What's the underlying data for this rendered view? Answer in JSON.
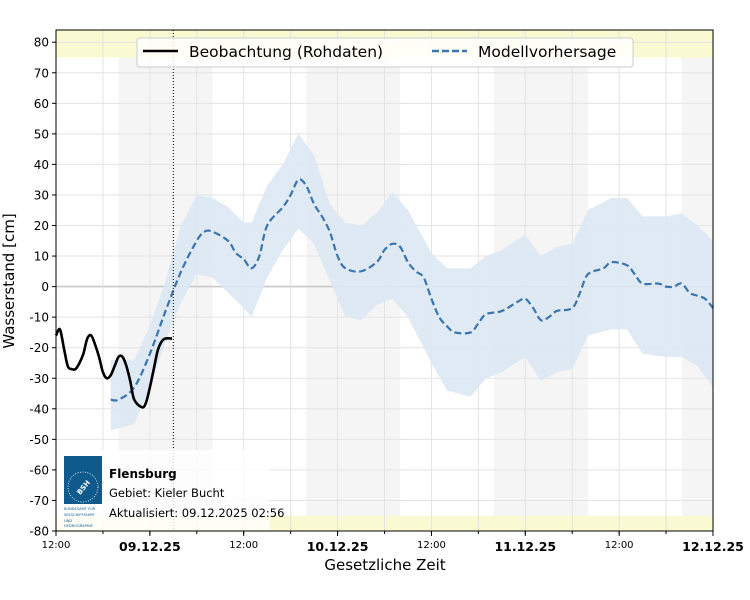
{
  "chart_data": {
    "type": "line",
    "xlabel": "Gesetzliche Zeit",
    "ylabel": "Wasserstand [cm]",
    "xlim": [
      "08.12 12:00",
      "12.12 00:00"
    ],
    "ylim": [
      -80,
      84
    ],
    "y_ticks": [
      -80,
      -70,
      -60,
      -50,
      -40,
      -30,
      -20,
      -10,
      0,
      10,
      20,
      30,
      40,
      50,
      60,
      70,
      80
    ],
    "x_ticks": [
      {
        "t": "08.12 12:00",
        "label": "12:00",
        "bold": false
      },
      {
        "t": "09.12 00:00",
        "label": "09.12.25",
        "bold": true
      },
      {
        "t": "09.12 12:00",
        "label": "12:00",
        "bold": false
      },
      {
        "t": "10.12 00:00",
        "label": "10.12.25",
        "bold": true
      },
      {
        "t": "10.12 12:00",
        "label": "12:00",
        "bold": false
      },
      {
        "t": "11.12 00:00",
        "label": "11.12.25",
        "bold": true
      },
      {
        "t": "11.12 12:00",
        "label": "12:00",
        "bold": false
      },
      {
        "t": "12.12 00:00",
        "label": "12.12.25",
        "bold": true
      }
    ],
    "grid": true,
    "legend_placement": "top-center",
    "night_bands": [
      [
        "08.12 20:00",
        "09.12 08:00"
      ],
      [
        "09.12 20:00",
        "10.12 08:00"
      ],
      [
        "10.12 20:00",
        "11.12 08:00"
      ],
      [
        "11.12 20:00",
        "12.12 00:00"
      ]
    ],
    "warning_bands": [
      [
        75,
        84
      ],
      [
        -80,
        -75
      ]
    ],
    "now_marker": "09.12 03:00",
    "colors": {
      "observation": "#000000",
      "forecast": "#3a75b0",
      "band": "#dce8f3",
      "night": "#f5f5f5",
      "warning": "#fafad2",
      "logo": "#0f5a8c"
    },
    "series": [
      {
        "name": "Beobachtung (Rohdaten)",
        "style": "solid",
        "points": [
          [
            "08.12 12:00",
            -16
          ],
          [
            "08.12 12:30",
            -14
          ],
          [
            "08.12 13:00",
            -20
          ],
          [
            "08.12 13:30",
            -26
          ],
          [
            "08.12 14:00",
            -27
          ],
          [
            "08.12 14:30",
            -27
          ],
          [
            "08.12 15:00",
            -25
          ],
          [
            "08.12 15:30",
            -22
          ],
          [
            "08.12 16:00",
            -17
          ],
          [
            "08.12 16:30",
            -16
          ],
          [
            "08.12 17:00",
            -19
          ],
          [
            "08.12 17:30",
            -23
          ],
          [
            "08.12 18:00",
            -28
          ],
          [
            "08.12 18:30",
            -30
          ],
          [
            "08.12 19:00",
            -29
          ],
          [
            "08.12 19:30",
            -26
          ],
          [
            "08.12 20:00",
            -23
          ],
          [
            "08.12 20:30",
            -23
          ],
          [
            "08.12 21:00",
            -26
          ],
          [
            "08.12 21:30",
            -31
          ],
          [
            "08.12 22:00",
            -37
          ],
          [
            "08.12 23:00",
            -39.5
          ],
          [
            "08.12 23:30",
            -38
          ],
          [
            "09.12 00:00",
            -33
          ],
          [
            "09.12 00:30",
            -27
          ],
          [
            "09.12 01:00",
            -21
          ],
          [
            "09.12 01:30",
            -18
          ],
          [
            "09.12 02:00",
            -17
          ],
          [
            "09.12 02:50",
            -17
          ]
        ]
      },
      {
        "name": "Modellvorhersage",
        "style": "dashed",
        "points": [
          [
            "08.12 19:00",
            -37
          ],
          [
            "08.12 20:00",
            -37
          ],
          [
            "08.12 22:00",
            -33
          ],
          [
            "09.12 00:00",
            -22
          ],
          [
            "09.12 02:00",
            -8
          ],
          [
            "09.12 04:00",
            5
          ],
          [
            "09.12 06:00",
            15
          ],
          [
            "09.12 07:00",
            18
          ],
          [
            "09.12 08:00",
            18
          ],
          [
            "09.12 10:00",
            15
          ],
          [
            "09.12 11:00",
            11
          ],
          [
            "09.12 12:00",
            9
          ],
          [
            "09.12 13:00",
            6
          ],
          [
            "09.12 14:00",
            10
          ],
          [
            "09.12 15:00",
            20
          ],
          [
            "09.12 17:00",
            26
          ],
          [
            "09.12 18:00",
            30
          ],
          [
            "09.12 19:00",
            35
          ],
          [
            "09.12 20:00",
            33
          ],
          [
            "09.12 21:00",
            27
          ],
          [
            "09.12 22:00",
            23
          ],
          [
            "09.12 23:00",
            18
          ],
          [
            "10.12 00:00",
            10
          ],
          [
            "10.12 01:00",
            6
          ],
          [
            "10.12 03:00",
            5
          ],
          [
            "10.12 05:00",
            8
          ],
          [
            "10.12 06:00",
            12
          ],
          [
            "10.12 07:00",
            14
          ],
          [
            "10.12 08:00",
            13
          ],
          [
            "10.12 09:00",
            8
          ],
          [
            "10.12 10:00",
            5
          ],
          [
            "10.12 11:00",
            3
          ],
          [
            "10.12 12:00",
            -4
          ],
          [
            "10.12 13:00",
            -10
          ],
          [
            "10.12 14:00",
            -13
          ],
          [
            "10.12 15:00",
            -15
          ],
          [
            "10.12 17:00",
            -15
          ],
          [
            "10.12 18:00",
            -12
          ],
          [
            "10.12 19:00",
            -9
          ],
          [
            "10.12 21:00",
            -8
          ],
          [
            "10.12 23:00",
            -5
          ],
          [
            "11.12 00:00",
            -4
          ],
          [
            "11.12 01:00",
            -7
          ],
          [
            "11.12 02:00",
            -11
          ],
          [
            "11.12 03:00",
            -10
          ],
          [
            "11.12 04:00",
            -8
          ],
          [
            "11.12 06:00",
            -7
          ],
          [
            "11.12 07:00",
            -2
          ],
          [
            "11.12 08:00",
            4
          ],
          [
            "11.12 10:00",
            6
          ],
          [
            "11.12 11:00",
            8
          ],
          [
            "11.12 13:00",
            7
          ],
          [
            "11.12 14:00",
            4
          ],
          [
            "11.12 15:00",
            1
          ],
          [
            "11.12 17:00",
            1
          ],
          [
            "11.12 18:00",
            0
          ],
          [
            "11.12 19:00",
            0
          ],
          [
            "11.12 20:00",
            1
          ],
          [
            "11.12 21:00",
            -2
          ],
          [
            "11.12 22:00",
            -3
          ],
          [
            "11.12 23:00",
            -4
          ],
          [
            "12.12 00:00",
            -7
          ]
        ]
      }
    ],
    "uncertainty_band": [
      [
        "08.12 19:00",
        -24,
        -47
      ],
      [
        "08.12 22:00",
        -24,
        -45
      ],
      [
        "09.12 00:00",
        -13,
        -33
      ],
      [
        "09.12 02:00",
        2,
        -18
      ],
      [
        "09.12 04:00",
        20,
        -5
      ],
      [
        "09.12 06:00",
        30,
        4
      ],
      [
        "09.12 08:00",
        29,
        3
      ],
      [
        "09.12 10:00",
        26,
        -2
      ],
      [
        "09.12 12:00",
        21,
        -7
      ],
      [
        "09.12 13:00",
        21,
        -10
      ],
      [
        "09.12 15:00",
        33,
        3
      ],
      [
        "09.12 17:00",
        40,
        12
      ],
      [
        "09.12 19:00",
        50,
        19
      ],
      [
        "09.12 21:00",
        43,
        14
      ],
      [
        "09.12 23:00",
        27,
        2
      ],
      [
        "10.12 01:00",
        21,
        -10
      ],
      [
        "10.12 03:00",
        20,
        -11
      ],
      [
        "10.12 05:00",
        24,
        -6
      ],
      [
        "10.12 07:00",
        31,
        -4
      ],
      [
        "10.12 09:00",
        25,
        -10
      ],
      [
        "10.12 12:00",
        11,
        -25
      ],
      [
        "10.12 14:00",
        6,
        -34
      ],
      [
        "10.12 17:00",
        6,
        -36
      ],
      [
        "10.12 19:00",
        10,
        -30
      ],
      [
        "10.12 21:00",
        12,
        -28
      ],
      [
        "11.12 00:00",
        17,
        -23
      ],
      [
        "11.12 02:00",
        10,
        -31
      ],
      [
        "11.12 04:00",
        13,
        -28
      ],
      [
        "11.12 06:00",
        14,
        -27
      ],
      [
        "11.12 08:00",
        25,
        -16
      ],
      [
        "11.12 11:00",
        29,
        -14
      ],
      [
        "11.12 13:00",
        29,
        -14
      ],
      [
        "11.12 15:00",
        23,
        -22
      ],
      [
        "11.12 18:00",
        23,
        -23
      ],
      [
        "11.12 20:00",
        24,
        -23
      ],
      [
        "11.12 22:00",
        20,
        -26
      ],
      [
        "12.12 00:00",
        15,
        -33
      ]
    ]
  },
  "info": {
    "station": "Flensburg",
    "area": "Gebiet: Kieler Bucht",
    "updated": "Aktualisiert: 09.12.2025 02:56",
    "logo_text": "BSH",
    "logo_caption": "BUNDESAMT FÜR SEESCHIFFFAHRT UND HYDROGRAPHIE"
  }
}
